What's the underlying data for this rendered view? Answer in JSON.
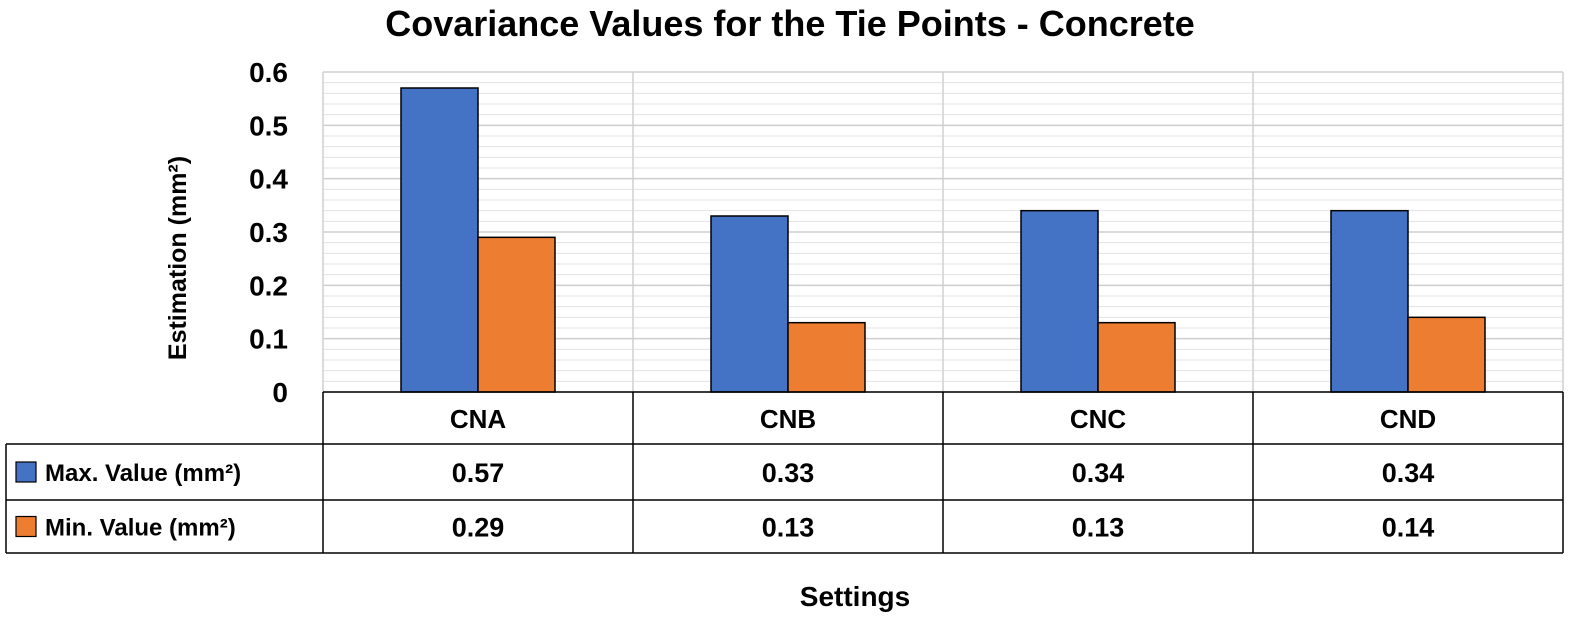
{
  "chart_data": {
    "type": "bar",
    "title": "Covariance Values for the Tie Points - Concrete",
    "xlabel": "Settings",
    "ylabel": "Estimation (mm²)",
    "ylim": [
      0,
      0.6
    ],
    "yticks": [
      "0",
      "0.1",
      "0.2",
      "0.3",
      "0.4",
      "0.5",
      "0.6"
    ],
    "grid": true,
    "legend": "data-table",
    "categories": [
      "CNA",
      "CNB",
      "CNC",
      "CND"
    ],
    "series": [
      {
        "name": "Max. Value (mm²)",
        "values": [
          0.57,
          0.33,
          0.34,
          0.34
        ],
        "labels": [
          "0.57",
          "0.33",
          "0.34",
          "0.34"
        ],
        "color": "#4472C4"
      },
      {
        "name": "Min. Value (mm²)",
        "values": [
          0.29,
          0.13,
          0.13,
          0.14
        ],
        "labels": [
          "0.29",
          "0.13",
          "0.13",
          "0.14"
        ],
        "color": "#ED7D31"
      }
    ]
  }
}
